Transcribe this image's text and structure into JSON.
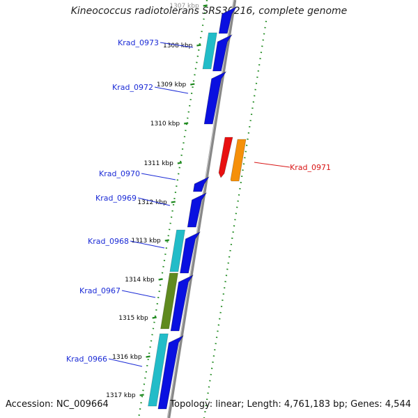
{
  "title": "Kineococcus radiotolerans SRS30216, complete genome",
  "footer": {
    "accession": "Accession: NC_009664",
    "summary": "Topology: linear; Length: 4,761,183 bp; Genes: 4,544"
  },
  "colors": {
    "forward_gene": "#0a10e0",
    "reverse_gene": "#e81010",
    "teal": "#22bcc8",
    "olive": "#5f8a1f",
    "orange": "#f5900a",
    "forward_label": "#1a2ad6",
    "reverse_label": "#d81414",
    "tick": "#1f8a1f",
    "backbone": "#888888"
  },
  "scale": {
    "ticks": [
      "1307 kbp",
      "1308 kbp",
      "1309 kbp",
      "1310 kbp",
      "1311 kbp",
      "1312 kbp",
      "1313 kbp",
      "1314 kbp",
      "1315 kbp",
      "1316 kbp",
      "1317 kbp"
    ]
  },
  "genes": [
    {
      "name": "Krad_0973",
      "labeled": true
    },
    {
      "name": "Krad_0972",
      "labeled": true
    },
    {
      "name": "Krad_0971",
      "labeled": true
    },
    {
      "name": "Krad_0970",
      "labeled": true
    },
    {
      "name": "Krad_0969",
      "labeled": true
    },
    {
      "name": "Krad_0968",
      "labeled": true
    },
    {
      "name": "Krad_0967",
      "labeled": true
    },
    {
      "name": "Krad_0966",
      "labeled": true
    }
  ]
}
